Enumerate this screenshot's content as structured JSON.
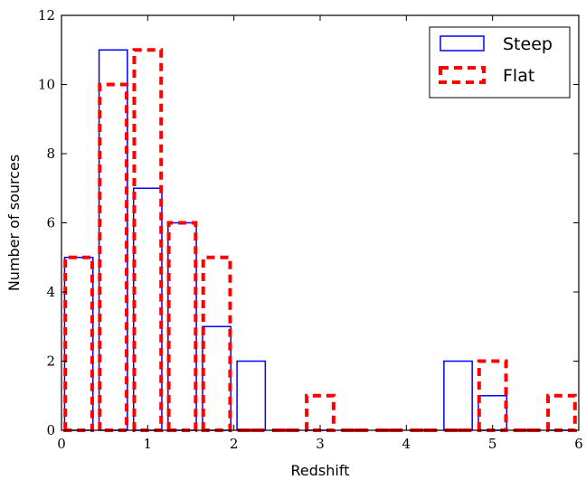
{
  "chart_data": {
    "type": "histogram",
    "xlabel": "Redshift",
    "ylabel": "Number of sources",
    "xlim": [
      0,
      6
    ],
    "ylim": [
      0,
      12
    ],
    "x_ticks": [
      0,
      1,
      2,
      3,
      4,
      5,
      6
    ],
    "y_ticks": [
      0,
      2,
      4,
      6,
      8,
      10,
      12
    ],
    "grid": false,
    "legend_position": "top-right",
    "bins": [
      0.0,
      0.4,
      0.8,
      1.2,
      1.6,
      2.0,
      2.4,
      2.8,
      3.2,
      3.6,
      4.0,
      4.4,
      4.8,
      5.2,
      5.6,
      6.0
    ],
    "series": [
      {
        "name": "Steep",
        "color": "#0000ff",
        "style": "solid",
        "values": [
          5,
          11,
          7,
          6,
          3,
          2,
          0,
          0,
          0,
          0,
          0,
          2,
          1,
          0,
          0
        ]
      },
      {
        "name": "Flat",
        "color": "#ff0000",
        "style": "dashed",
        "values": [
          5,
          10,
          11,
          6,
          5,
          0,
          0,
          1,
          0,
          0,
          0,
          0,
          2,
          0,
          1
        ]
      }
    ]
  }
}
